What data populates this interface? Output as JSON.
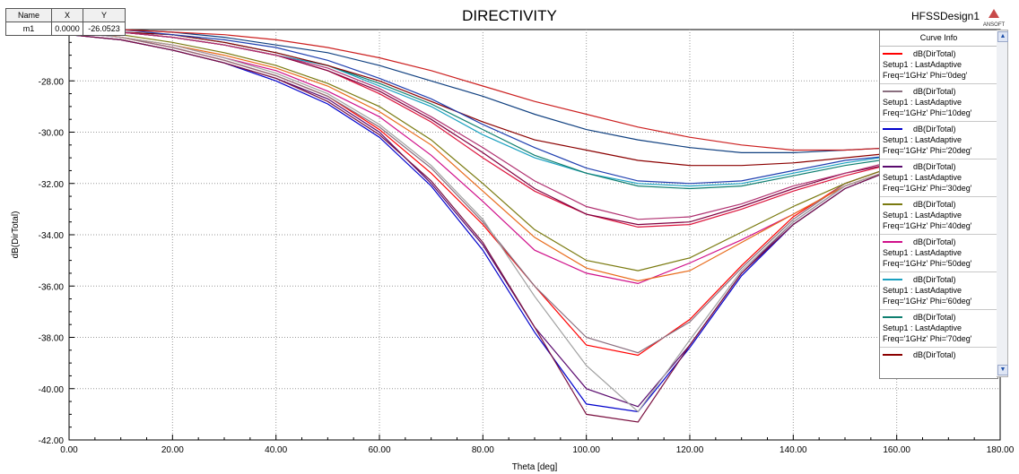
{
  "header": {
    "title": "DIRECTIVITY",
    "design_name": "HFSSDesign1",
    "logo_text": "ANSOFT"
  },
  "marker_table": {
    "headers": [
      "Name",
      "X",
      "Y"
    ],
    "rows": [
      [
        "m1",
        "0.0000",
        "-26.0523"
      ]
    ]
  },
  "legend": {
    "title": "Curve Info",
    "entries": [
      {
        "label": "dB(DirTotal)",
        "setup": "Setup1 : LastAdaptive",
        "params": "Freq='1GHz' Phi='0deg'",
        "color": "#ff0000"
      },
      {
        "label": "dB(DirTotal)",
        "setup": "Setup1 : LastAdaptive",
        "params": "Freq='1GHz' Phi='10deg'",
        "color": "#8a6f7f"
      },
      {
        "label": "dB(DirTotal)",
        "setup": "Setup1 : LastAdaptive",
        "params": "Freq='1GHz' Phi='20deg'",
        "color": "#0000cc"
      },
      {
        "label": "dB(DirTotal)",
        "setup": "Setup1 : LastAdaptive",
        "params": "Freq='1GHz' Phi='30deg'",
        "color": "#5a0a6e"
      },
      {
        "label": "dB(DirTotal)",
        "setup": "Setup1 : LastAdaptive",
        "params": "Freq='1GHz' Phi='40deg'",
        "color": "#7a7a10"
      },
      {
        "label": "dB(DirTotal)",
        "setup": "Setup1 : LastAdaptive",
        "params": "Freq='1GHz' Phi='50deg'",
        "color": "#d0108a"
      },
      {
        "label": "dB(DirTotal)",
        "setup": "Setup1 : LastAdaptive",
        "params": "Freq='1GHz' Phi='60deg'",
        "color": "#1aa0c0"
      },
      {
        "label": "dB(DirTotal)",
        "setup": "Setup1 : LastAdaptive",
        "params": "Freq='1GHz' Phi='70deg'",
        "color": "#0f7f70"
      },
      {
        "label": "dB(DirTotal)",
        "setup": "",
        "params": "",
        "color": "#8b0000"
      }
    ]
  },
  "chart_data": {
    "type": "line",
    "title": "DIRECTIVITY",
    "xlabel": "Theta [deg]",
    "ylabel": "dB(DirTotal)",
    "xlim": [
      0,
      180
    ],
    "ylim": [
      -42,
      -26
    ],
    "x_ticks": [
      "0.00",
      "20.00",
      "40.00",
      "60.00",
      "80.00",
      "100.00",
      "120.00",
      "140.00",
      "160.00",
      "180.00"
    ],
    "y_ticks": [
      "-28.00",
      "-30.00",
      "-32.00",
      "-34.00",
      "-36.00",
      "-38.00",
      "-40.00",
      "-42.00"
    ],
    "grid": true,
    "legend_position": "right",
    "x": [
      0,
      10,
      20,
      30,
      40,
      50,
      60,
      70,
      80,
      90,
      100,
      110,
      120,
      130,
      140,
      150,
      160
    ],
    "series": [
      {
        "color": "#ff0000",
        "values": [
          -26.05,
          -26.3,
          -26.7,
          -27.2,
          -27.8,
          -28.6,
          -29.9,
          -31.6,
          -33.6,
          -36.0,
          -38.3,
          -38.7,
          -37.3,
          -35.2,
          -33.3,
          -32.0,
          -31.3
        ]
      },
      {
        "color": "#8a6f7f",
        "values": [
          -26.1,
          -26.3,
          -26.7,
          -27.2,
          -27.8,
          -28.6,
          -29.8,
          -31.4,
          -33.5,
          -36.0,
          -38.0,
          -38.6,
          -37.4,
          -35.3,
          -33.4,
          -32.0,
          -31.3
        ]
      },
      {
        "color": "#0000cc",
        "values": [
          -26.2,
          -26.4,
          -26.8,
          -27.3,
          -28.0,
          -28.9,
          -30.2,
          -32.1,
          -34.6,
          -37.8,
          -40.6,
          -40.9,
          -38.4,
          -35.6,
          -33.6,
          -32.2,
          -31.4
        ]
      },
      {
        "color": "#5a0a6e",
        "values": [
          -26.2,
          -26.4,
          -26.8,
          -27.3,
          -27.9,
          -28.7,
          -30.0,
          -32.0,
          -34.4,
          -37.6,
          -40.0,
          -40.7,
          -38.3,
          -35.5,
          -33.5,
          -32.1,
          -31.4
        ]
      },
      {
        "color": "#7a7a10",
        "values": [
          -26.1,
          -26.2,
          -26.5,
          -26.9,
          -27.4,
          -28.1,
          -29.0,
          -30.3,
          -32.0,
          -33.8,
          -35.0,
          -35.4,
          -34.9,
          -33.9,
          -32.9,
          -32.0,
          -31.3
        ]
      },
      {
        "color": "#d0108a",
        "values": [
          -26.1,
          -26.3,
          -26.6,
          -27.1,
          -27.6,
          -28.4,
          -29.4,
          -30.9,
          -32.7,
          -34.6,
          -35.5,
          -35.9,
          -35.1,
          -34.2,
          -33.2,
          -32.1,
          -31.4
        ]
      },
      {
        "color": "#1aa0c0",
        "values": [
          -26.0,
          -26.1,
          -26.3,
          -26.6,
          -27.0,
          -27.4,
          -28.2,
          -29.0,
          -30.1,
          -31.0,
          -31.6,
          -32.0,
          -32.1,
          -32.0,
          -31.6,
          -31.2,
          -30.9
        ]
      },
      {
        "color": "#0f7f70",
        "values": [
          -26.0,
          -26.1,
          -26.2,
          -26.5,
          -26.9,
          -27.4,
          -28.1,
          -28.9,
          -29.9,
          -30.9,
          -31.6,
          -32.1,
          -32.2,
          -32.1,
          -31.7,
          -31.3,
          -31.0
        ]
      },
      {
        "color": "#8b0000",
        "values": [
          -26.0,
          -26.1,
          -26.2,
          -26.5,
          -26.9,
          -27.4,
          -28.0,
          -28.8,
          -29.6,
          -30.3,
          -30.7,
          -31.1,
          -31.3,
          -31.3,
          -31.2,
          -31.0,
          -30.8
        ]
      },
      {
        "color": "#dc143c",
        "values": [
          -26.0,
          -26.1,
          -26.3,
          -26.6,
          -27.0,
          -27.6,
          -28.5,
          -29.6,
          -31.0,
          -32.3,
          -33.2,
          -33.7,
          -33.6,
          -33.0,
          -32.3,
          -31.7,
          -31.2
        ]
      },
      {
        "color": "#800040",
        "values": [
          -26.0,
          -26.1,
          -26.3,
          -26.6,
          -27.0,
          -27.6,
          -28.4,
          -29.5,
          -30.8,
          -32.2,
          -33.2,
          -33.6,
          -33.5,
          -32.9,
          -32.2,
          -31.6,
          -31.2
        ]
      },
      {
        "color": "#b03070",
        "values": [
          -26.0,
          -26.1,
          -26.3,
          -26.6,
          -27.0,
          -27.5,
          -28.3,
          -29.4,
          -30.6,
          -31.9,
          -32.9,
          -33.4,
          -33.3,
          -32.8,
          -32.1,
          -31.6,
          -31.1
        ]
      },
      {
        "color": "#2040b0",
        "values": [
          -26.0,
          -26.0,
          -26.2,
          -26.4,
          -26.7,
          -27.2,
          -27.9,
          -28.7,
          -29.7,
          -30.6,
          -31.4,
          -31.9,
          -32.0,
          -31.9,
          -31.5,
          -31.1,
          -30.9
        ]
      },
      {
        "color": "#e86a1a",
        "values": [
          -26.05,
          -26.3,
          -26.6,
          -27.0,
          -27.5,
          -28.2,
          -29.2,
          -30.5,
          -32.3,
          -34.1,
          -35.3,
          -35.8,
          -35.4,
          -34.3,
          -33.2,
          -32.1,
          -31.4
        ]
      },
      {
        "color": "#a0a0a0",
        "values": [
          -26.1,
          -26.3,
          -26.6,
          -27.1,
          -27.7,
          -28.5,
          -29.7,
          -31.3,
          -33.4,
          -36.4,
          -39.1,
          -40.9,
          -38.1,
          -35.4,
          -33.5,
          -32.1,
          -31.4
        ]
      },
      {
        "color": "#7a1040",
        "values": [
          -26.2,
          -26.4,
          -26.8,
          -27.3,
          -27.9,
          -28.8,
          -30.1,
          -31.9,
          -34.3,
          -37.6,
          -41.0,
          -41.3,
          -38.3,
          -35.5,
          -33.6,
          -32.2,
          -31.4
        ]
      },
      {
        "color": "#104080",
        "values": [
          -26.0,
          -26.0,
          -26.1,
          -26.3,
          -26.6,
          -26.9,
          -27.4,
          -28.0,
          -28.6,
          -29.3,
          -29.9,
          -30.3,
          -30.6,
          -30.8,
          -30.8,
          -30.7,
          -30.6
        ]
      },
      {
        "color": "#cc2020",
        "values": [
          -26.0,
          -26.0,
          -26.1,
          -26.2,
          -26.4,
          -26.7,
          -27.1,
          -27.6,
          -28.2,
          -28.8,
          -29.3,
          -29.8,
          -30.2,
          -30.5,
          -30.7,
          -30.7,
          -30.6
        ]
      }
    ]
  }
}
